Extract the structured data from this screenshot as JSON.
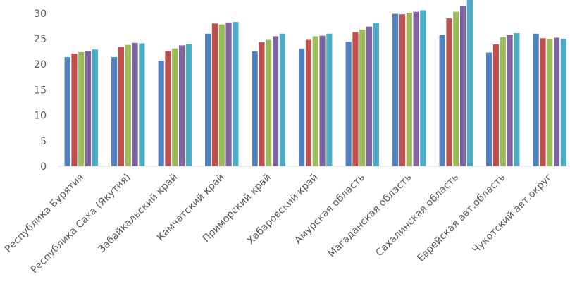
{
  "chart_data": {
    "type": "bar",
    "categories": [
      "Республика Бурятия",
      "Республика Саха (Якутия)",
      "Забайкальский край",
      "Камчатский край",
      "Приморский край",
      "Хабаровский край",
      "Амурская область",
      "Магаданская область",
      "Сахалинская область",
      "Еврейская  авт.область",
      "Чукотский  авт.округ"
    ],
    "series": [
      {
        "color": "#4f81bd",
        "values": [
          21.4,
          21.4,
          20.7,
          26.0,
          22.5,
          23.1,
          24.4,
          29.9,
          25.7,
          22.3,
          26.0
        ]
      },
      {
        "color": "#c0504d",
        "values": [
          22.1,
          23.4,
          22.6,
          28.0,
          24.3,
          24.8,
          26.3,
          29.8,
          29.0,
          23.9,
          25.1
        ]
      },
      {
        "color": "#9bbb59",
        "values": [
          22.4,
          23.8,
          23.1,
          27.8,
          24.8,
          25.5,
          26.8,
          30.1,
          30.3,
          25.3,
          25.0
        ]
      },
      {
        "color": "#8064a2",
        "values": [
          22.6,
          24.2,
          23.7,
          28.2,
          25.5,
          25.6,
          27.4,
          30.3,
          31.5,
          25.7,
          25.2
        ]
      },
      {
        "color": "#4bacc6",
        "values": [
          22.9,
          24.1,
          23.9,
          28.3,
          26.0,
          26.0,
          28.1,
          30.6,
          33.0,
          26.1,
          25.0
        ]
      }
    ],
    "ylim": [
      0,
      32.6
    ],
    "yticks": [
      0,
      5,
      10,
      15,
      20,
      25,
      30
    ]
  }
}
